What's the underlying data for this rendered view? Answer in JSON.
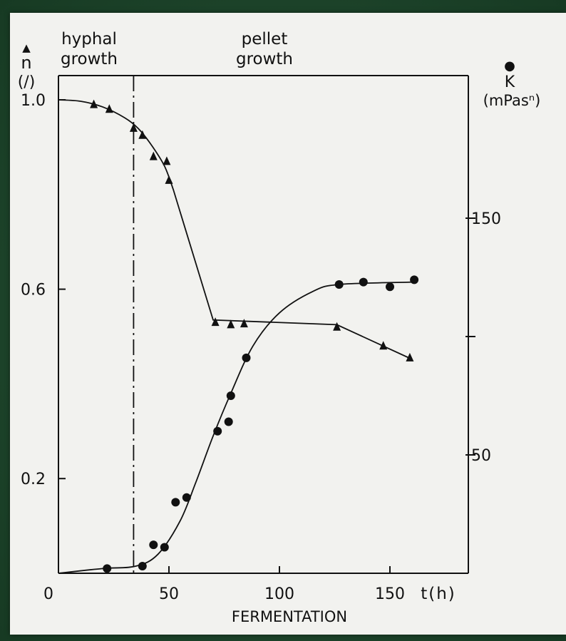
{
  "chart_data": {
    "type": "line",
    "title": "",
    "xlabel": "FERMENTATION",
    "x_unit_label": "t(h)",
    "xlim": [
      0,
      170
    ],
    "x_ticks": [
      0,
      50,
      100,
      150
    ],
    "left_axis": {
      "marker_symbol": "▲",
      "label_line1": "n",
      "label_line2": "(/)",
      "ylim": [
        0,
        1.0
      ],
      "ticks": [
        0.2,
        0.6,
        1.0
      ],
      "tick_labels": [
        "0.2",
        "0.6",
        "1.0"
      ]
    },
    "right_axis": {
      "marker_symbol": "●",
      "label_line1": "K",
      "label_line2": "(mPasⁿ)",
      "ylim": [
        0,
        200
      ],
      "ticks": [
        50,
        100,
        150
      ],
      "tick_labels": [
        "50",
        "",
        "150"
      ]
    },
    "phase_divider_x": 34,
    "annotations": [
      {
        "line1": "hyphal",
        "line2": "growth"
      },
      {
        "line1": "pellet",
        "line2": "growth"
      }
    ],
    "series": [
      {
        "axis": "left",
        "marker": "triangle",
        "points": [
          [
            16,
            0.99
          ],
          [
            23,
            0.98
          ],
          [
            34,
            0.94
          ],
          [
            38,
            0.925
          ],
          [
            43,
            0.88
          ],
          [
            49,
            0.87
          ],
          [
            50,
            0.83
          ],
          [
            71,
            0.53
          ],
          [
            78,
            0.525
          ],
          [
            84,
            0.527
          ],
          [
            126,
            0.52
          ],
          [
            147,
            0.48
          ],
          [
            159,
            0.455
          ]
        ],
        "curve": [
          [
            0,
            1.0
          ],
          [
            10,
            0.997
          ],
          [
            20,
            0.985
          ],
          [
            30,
            0.962
          ],
          [
            36,
            0.94
          ],
          [
            42,
            0.905
          ],
          [
            48,
            0.86
          ],
          [
            52,
            0.81
          ],
          [
            70,
            0.535
          ],
          [
            126,
            0.525
          ],
          [
            160,
            0.452
          ]
        ]
      },
      {
        "axis": "right",
        "marker": "circle",
        "points": [
          [
            22,
            2
          ],
          [
            38,
            3
          ],
          [
            43,
            12
          ],
          [
            48,
            11
          ],
          [
            53,
            30
          ],
          [
            58,
            32
          ],
          [
            72,
            60
          ],
          [
            77,
            64
          ],
          [
            78,
            75
          ],
          [
            85,
            91
          ],
          [
            127,
            122
          ],
          [
            138,
            123
          ],
          [
            150,
            121
          ],
          [
            161,
            124
          ]
        ],
        "curve": [
          [
            0,
            0
          ],
          [
            20,
            2
          ],
          [
            35,
            3
          ],
          [
            45,
            8
          ],
          [
            55,
            22
          ],
          [
            62,
            38
          ],
          [
            70,
            58
          ],
          [
            78,
            76
          ],
          [
            88,
            96
          ],
          [
            100,
            110
          ],
          [
            115,
            119
          ],
          [
            127,
            122
          ],
          [
            160,
            123
          ]
        ]
      }
    ]
  }
}
